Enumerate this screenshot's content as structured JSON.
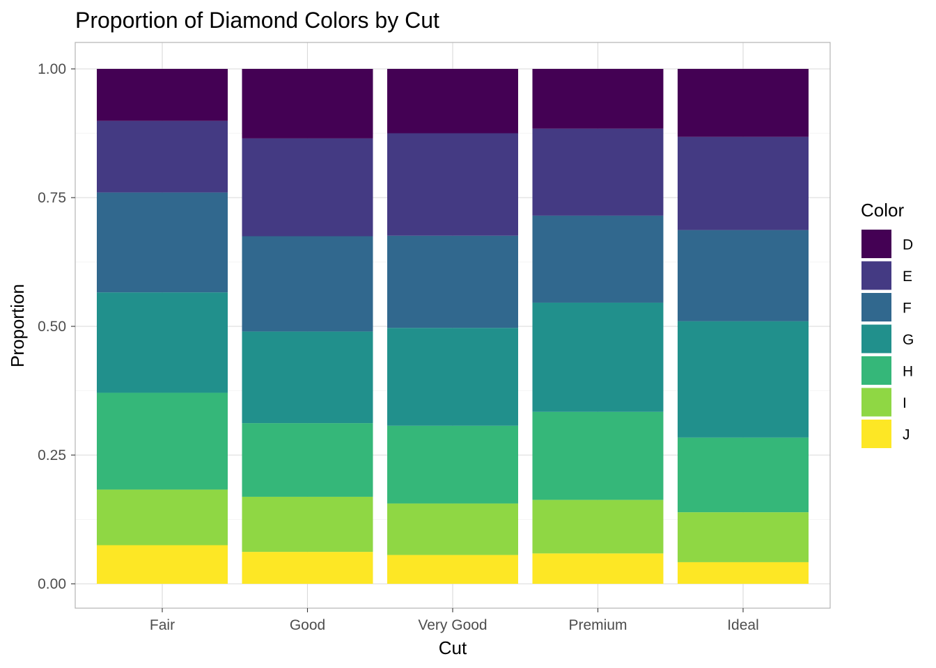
{
  "chart_data": {
    "type": "bar",
    "stacked": "fill",
    "title": "Proportion of Diamond Colors by Cut",
    "xlabel": "Cut",
    "ylabel": "Proportion",
    "ylim": [
      0,
      1
    ],
    "yticks": [
      "0.00",
      "0.25",
      "0.50",
      "0.75",
      "1.00"
    ],
    "ytick_values": [
      0,
      0.25,
      0.5,
      0.75,
      1.0
    ],
    "grid": true,
    "legend": {
      "title": "Color",
      "position": "right"
    },
    "categories": [
      "Fair",
      "Good",
      "Very Good",
      "Premium",
      "Ideal"
    ],
    "series": [
      {
        "name": "D",
        "color": "#440154",
        "values": [
          0.101,
          0.135,
          0.125,
          0.116,
          0.132
        ]
      },
      {
        "name": "E",
        "color": "#443A83",
        "values": [
          0.139,
          0.19,
          0.199,
          0.169,
          0.181
        ]
      },
      {
        "name": "F",
        "color": "#31688E",
        "values": [
          0.194,
          0.185,
          0.179,
          0.169,
          0.177
        ]
      },
      {
        "name": "G",
        "color": "#21908C",
        "values": [
          0.195,
          0.178,
          0.19,
          0.212,
          0.226
        ]
      },
      {
        "name": "H",
        "color": "#35B779",
        "values": [
          0.188,
          0.143,
          0.151,
          0.171,
          0.145
        ]
      },
      {
        "name": "I",
        "color": "#8FD744",
        "values": [
          0.108,
          0.107,
          0.1,
          0.104,
          0.097
        ]
      },
      {
        "name": "J",
        "color": "#FDE725",
        "values": [
          0.075,
          0.062,
          0.056,
          0.059,
          0.042
        ]
      }
    ]
  }
}
